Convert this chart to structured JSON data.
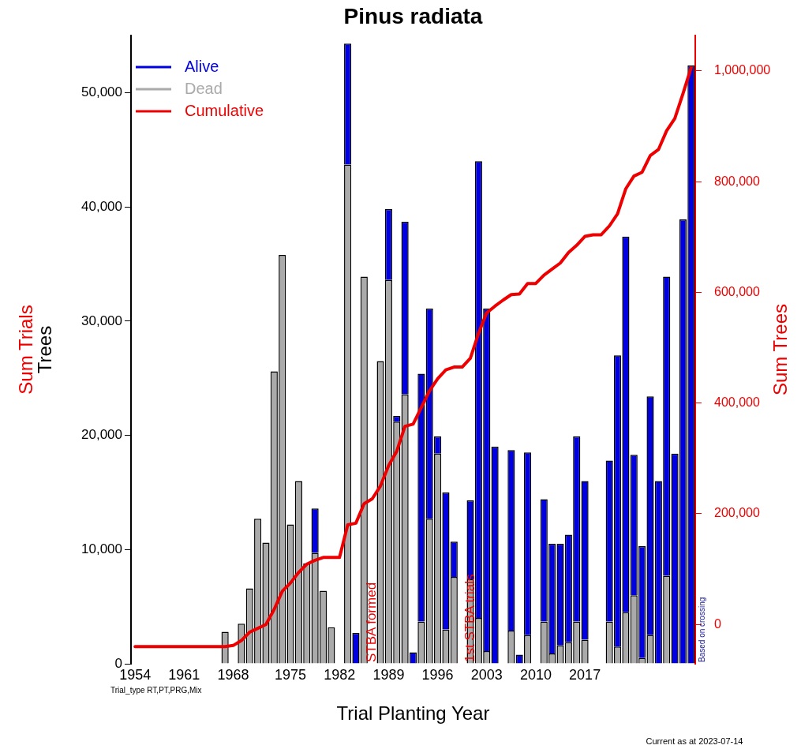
{
  "chart_data": {
    "type": "bar",
    "title": "Pinus radiata",
    "xlabel": "Trial Planting Year",
    "ylabel": "Sum Trials\nTrees",
    "y2label": "Sum Trees",
    "categories": [
      "1954",
      null,
      null,
      null,
      null,
      null,
      "1961",
      null,
      null,
      null,
      null,
      null,
      "1968",
      null,
      null,
      null,
      null,
      null,
      null,
      "1975",
      null,
      null,
      null,
      null,
      null,
      "1982",
      null,
      null,
      null,
      null,
      null,
      "1989",
      null,
      null,
      null,
      null,
      null,
      "1996",
      null,
      null,
      null,
      null,
      null,
      "2003",
      null,
      null,
      null,
      null,
      null,
      "2010",
      null,
      null,
      null,
      null,
      null,
      "2017",
      null,
      null,
      null,
      null,
      null,
      null,
      null,
      null,
      null,
      null,
      null,
      null,
      null
    ],
    "series": [
      {
        "name": "Dead",
        "color": "#aaaaaa",
        "values": [
          0,
          0,
          0,
          0,
          0,
          0,
          0,
          0,
          0,
          0,
          0,
          2800,
          0,
          3500,
          6600,
          12700,
          10600,
          25600,
          35800,
          12200,
          16000,
          8800,
          9700,
          6400,
          3200,
          0,
          43700,
          0,
          33900,
          0,
          26500,
          33600,
          21200,
          23600,
          0,
          3700,
          12700,
          18400,
          3000,
          7600,
          0,
          7400,
          4000,
          1100,
          0,
          0,
          2900,
          0,
          2500,
          0,
          3700,
          900,
          1600,
          1900,
          3700,
          2100,
          0,
          0,
          3700,
          1500,
          4500,
          6000,
          500,
          2500,
          0,
          7700,
          null,
          null,
          0
        ]
      },
      {
        "name": "Alive",
        "color": "#0000e0",
        "values": [
          0,
          0,
          0,
          0,
          0,
          0,
          0,
          0,
          0,
          0,
          0,
          0,
          0,
          0,
          0,
          0,
          0,
          0,
          0,
          0,
          0,
          0,
          3900,
          0,
          0,
          0,
          10600,
          2700,
          0,
          0,
          0,
          6200,
          500,
          15100,
          1000,
          21700,
          18400,
          1500,
          12000,
          3100,
          0,
          6900,
          40000,
          30000,
          19000,
          0,
          15800,
          800,
          16000,
          0,
          10700,
          9600,
          8900,
          9400,
          16200,
          13900,
          0,
          0,
          14100,
          25500,
          32900,
          12300,
          9800,
          20900,
          16000,
          26200,
          18400,
          38900,
          52400
        ]
      },
      {
        "name": "Cumulative",
        "type": "line",
        "axis": "y2",
        "color": "#ee0000",
        "values": [
          -40000,
          -40000,
          -40000,
          -40000,
          -40000,
          -40000,
          -40000,
          -40000,
          -40000,
          -40000,
          -40000,
          -40000,
          -38000,
          -29000,
          -14000,
          -7000,
          0,
          27000,
          60000,
          75000,
          94000,
          109000,
          116000,
          121000,
          121000,
          121000,
          180000,
          183000,
          218000,
          227000,
          250000,
          287000,
          313000,
          358000,
          362000,
          392000,
          422000,
          444000,
          460000,
          465000,
          465000,
          481000,
          526000,
          563000,
          575000,
          586000,
          596000,
          597000,
          616000,
          616000,
          631000,
          642000,
          653000,
          672000,
          685000,
          701000,
          704000,
          704000,
          720000,
          742000,
          787000,
          810000,
          817000,
          847000,
          858000,
          892000,
          914000,
          959000,
          1006000
        ]
      }
    ],
    "stacked": true,
    "ylim": [
      0,
      55000
    ],
    "yticks": [
      {
        "value": 0,
        "label": "0"
      },
      {
        "value": 10000,
        "label": "10,000"
      },
      {
        "value": 20000,
        "label": "20,000"
      },
      {
        "value": 30000,
        "label": "30,000"
      },
      {
        "value": 40000,
        "label": "40,000"
      },
      {
        "value": 50000,
        "label": "50,000"
      }
    ],
    "y2lim": [
      -71000,
      1064000
    ],
    "y2ticks": [
      {
        "value": 0,
        "label": "0"
      },
      {
        "value": 200000,
        "label": "200,000"
      },
      {
        "value": 400000,
        "label": "400,000"
      },
      {
        "value": 600000,
        "label": "600,000"
      },
      {
        "value": 800000,
        "label": "800,000"
      },
      {
        "value": 1000000,
        "label": "1,000,000"
      }
    ],
    "grid": false,
    "legend": "top left",
    "marker": "none",
    "line_style": "solid",
    "annotations": [
      "STBA formed",
      "1st STBA trials",
      "Based on crossing",
      "Trial_type RT,PT,PRG,Mix",
      "Current as at 2023-07-14"
    ]
  }
}
